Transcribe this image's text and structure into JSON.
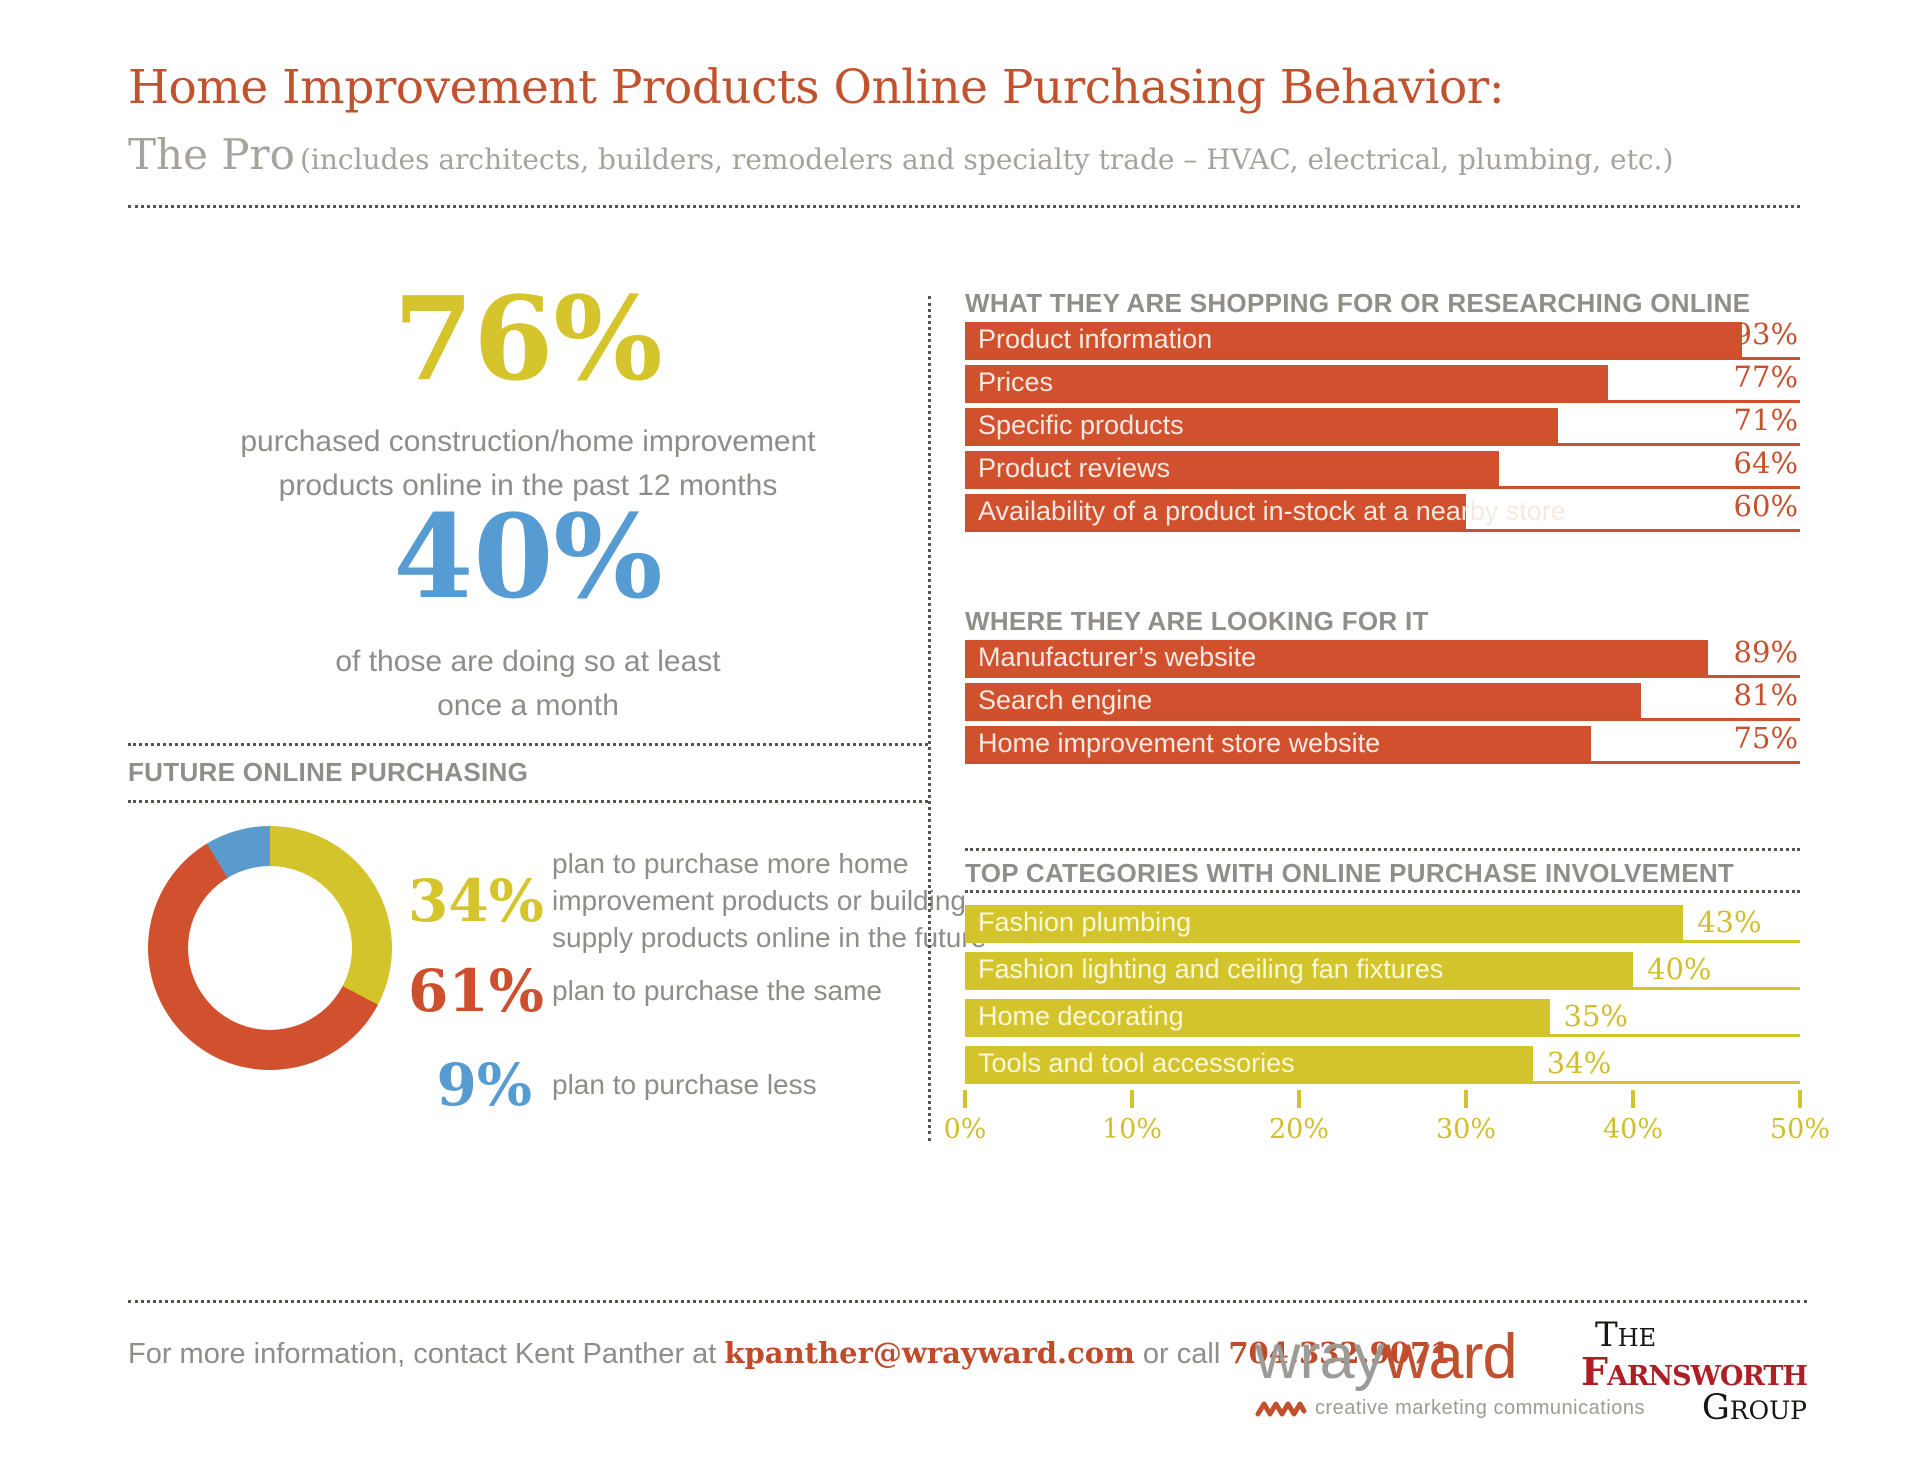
{
  "header": {
    "title": "Home Improvement Products Online Purchasing Behavior:",
    "subtitle": "The Pro",
    "subtitle_note": "(includes architects, builders, remodelers and specialty trade – HVAC, electrical, plumbing, etc.)"
  },
  "palette": {
    "red": "#d1512f",
    "yellow": "#d4c42c",
    "blue": "#5a9acd",
    "gray_text": "#8e8d88",
    "heading_gray": "#8f8e88",
    "title_red": "#c0522e"
  },
  "stats": {
    "purchased": {
      "value": 76,
      "caption": "purchased construction/home improvement\nproducts online in the past 12 months"
    },
    "monthly": {
      "value": 40,
      "caption": "of those are doing so at least\nonce a month"
    }
  },
  "chart_data": [
    {
      "type": "pie",
      "subtype": "donut",
      "title": "FUTURE ONLINE PURCHASING",
      "slices": [
        {
          "value": 34,
          "color": "#d4c42c",
          "label": "plan to purchase more home\nimprovement products or building\nsupply products online in the future"
        },
        {
          "value": 61,
          "color": "#d1512f",
          "label": "plan to purchase the same"
        },
        {
          "value": 9,
          "color": "#5a9acd",
          "label": "plan to purchase less"
        }
      ]
    },
    {
      "type": "bar",
      "orientation": "horizontal",
      "title": "WHAT THEY ARE SHOPPING FOR OR RESEARCHING ONLINE",
      "categories": [
        "Product information",
        "Prices",
        "Specific products",
        "Product reviews",
        "Availability of a product in-stock at a nearby store"
      ],
      "values": [
        93,
        77,
        71,
        64,
        60
      ],
      "unit": "%",
      "xlim": [
        0,
        100
      ],
      "bar_color": "#d1512f",
      "grid": false
    },
    {
      "type": "bar",
      "orientation": "horizontal",
      "title": "WHERE THEY ARE LOOKING FOR IT",
      "categories": [
        "Manufacturer’s website",
        "Search engine",
        "Home improvement store website"
      ],
      "values": [
        89,
        81,
        75
      ],
      "unit": "%",
      "xlim": [
        0,
        100
      ],
      "bar_color": "#d1512f",
      "grid": false
    },
    {
      "type": "bar",
      "orientation": "horizontal",
      "title": "TOP CATEGORIES WITH ONLINE PURCHASE INVOLVEMENT",
      "categories": [
        "Fashion plumbing",
        "Fashion lighting and ceiling fan fixtures",
        "Home decorating",
        "Tools and tool accessories"
      ],
      "values": [
        43,
        40,
        35,
        34
      ],
      "unit": "%",
      "xlim": [
        0,
        50
      ],
      "x_ticks": [
        "0%",
        "10%",
        "20%",
        "30%",
        "40%",
        "50%"
      ],
      "bar_color": "#d4c42c",
      "grid": false
    }
  ],
  "footer": {
    "contact_prefix": "For more information, contact Kent Panther at ",
    "email": "kpanther@wrayward.com",
    "contact_middle": " or call ",
    "phone": "704.332.9071",
    "contact_suffix": ".",
    "wrayward": {
      "part1": "wray",
      "part2": "ward",
      "tagline": "creative marketing communications"
    },
    "farnsworth": {
      "line1": "The",
      "line2": "Farnsworth",
      "line3": "Group"
    }
  }
}
